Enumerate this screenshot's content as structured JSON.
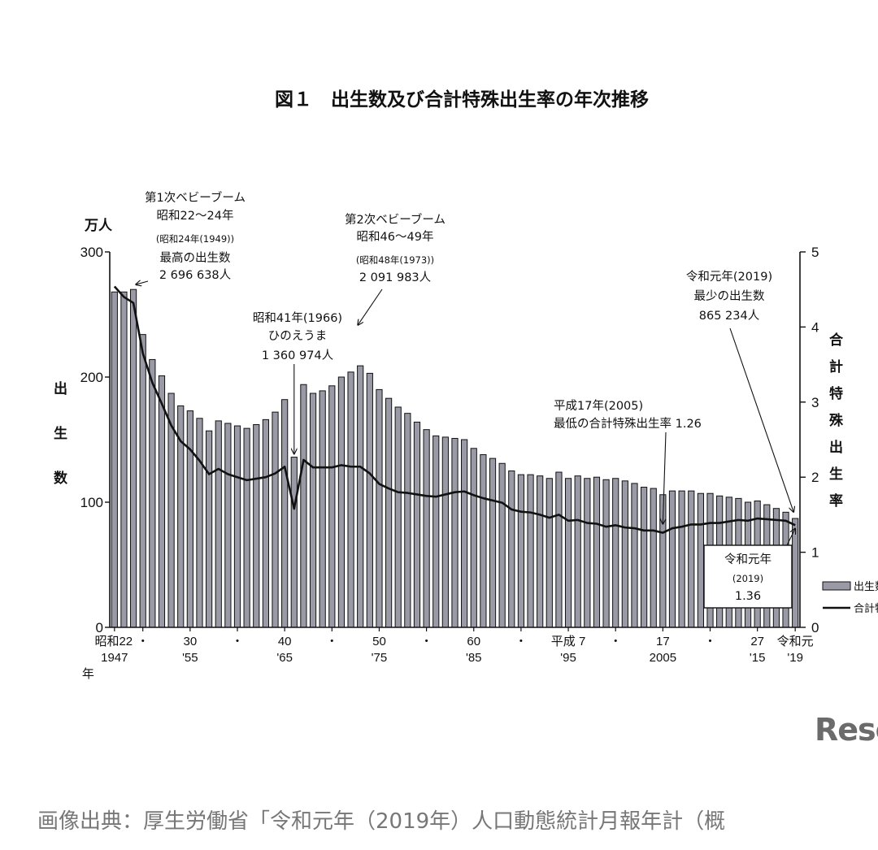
{
  "chart_data": {
    "type": "bar",
    "title": "図１　出生数及び合計特殊出生率の年次推移",
    "ylabel_left_unit": "万人",
    "ylabel_left": [
      "出",
      "生",
      "数"
    ],
    "ylabel_right": [
      "合",
      "計",
      "特",
      "殊",
      "出",
      "生",
      "率"
    ],
    "ylim_left": [
      0,
      300
    ],
    "ylim_right": [
      0,
      5
    ],
    "yticks_left": [
      "0",
      "100",
      "200",
      "300"
    ],
    "yticks_right": [
      "0",
      "1",
      "2",
      "3",
      "4",
      "5"
    ],
    "xtick_labels": [
      {
        "year": 1947,
        "top": "昭和22",
        "bottom": "1947",
        "extra": "年"
      },
      {
        "year": 1950,
        "top": "・",
        "bottom": ""
      },
      {
        "year": 1955,
        "top": "30",
        "bottom": "'55"
      },
      {
        "year": 1960,
        "top": "・",
        "bottom": ""
      },
      {
        "year": 1965,
        "top": "40",
        "bottom": "'65"
      },
      {
        "year": 1970,
        "top": "・",
        "bottom": ""
      },
      {
        "year": 1975,
        "top": "50",
        "bottom": "'75"
      },
      {
        "year": 1980,
        "top": "・",
        "bottom": ""
      },
      {
        "year": 1985,
        "top": "60",
        "bottom": "'85"
      },
      {
        "year": 1990,
        "top": "・",
        "bottom": ""
      },
      {
        "year": 1995,
        "top": "平成 7",
        "bottom": "'95"
      },
      {
        "year": 2000,
        "top": "・",
        "bottom": ""
      },
      {
        "year": 2005,
        "top": "17",
        "bottom": "2005"
      },
      {
        "year": 2010,
        "top": "・",
        "bottom": ""
      },
      {
        "year": 2015,
        "top": "27",
        "bottom": "'15"
      },
      {
        "year": 2019,
        "top": "令和元",
        "bottom": "'19"
      }
    ],
    "x": [
      1947,
      1948,
      1949,
      1950,
      1951,
      1952,
      1953,
      1954,
      1955,
      1956,
      1957,
      1958,
      1959,
      1960,
      1961,
      1962,
      1963,
      1964,
      1965,
      1966,
      1967,
      1968,
      1969,
      1970,
      1971,
      1972,
      1973,
      1974,
      1975,
      1976,
      1977,
      1978,
      1979,
      1980,
      1981,
      1982,
      1983,
      1984,
      1985,
      1986,
      1987,
      1988,
      1989,
      1990,
      1991,
      1992,
      1993,
      1994,
      1995,
      1996,
      1997,
      1998,
      1999,
      2000,
      2001,
      2002,
      2003,
      2004,
      2005,
      2006,
      2007,
      2008,
      2009,
      2010,
      2011,
      2012,
      2013,
      2014,
      2015,
      2016,
      2017,
      2018,
      2019
    ],
    "series": [
      {
        "name": "出生数",
        "axis": "left",
        "values": [
          268,
          268,
          270,
          234,
          214,
          201,
          187,
          177,
          173,
          167,
          157,
          165,
          163,
          161,
          159,
          162,
          166,
          172,
          182,
          136,
          194,
          187,
          189,
          193,
          200,
          204,
          209,
          203,
          190,
          183,
          176,
          171,
          164,
          158,
          153,
          152,
          151,
          150,
          143,
          138,
          135,
          131,
          125,
          122,
          122,
          121,
          119,
          124,
          119,
          121,
          119,
          120,
          118,
          119,
          117,
          115,
          112,
          111,
          106,
          109,
          109,
          109,
          107,
          107,
          105,
          104,
          103,
          100,
          101,
          98,
          95,
          92,
          87
        ]
      },
      {
        "name": "合計特殊出生率",
        "axis": "right",
        "values": [
          4.54,
          4.4,
          4.32,
          3.65,
          3.26,
          2.98,
          2.69,
          2.48,
          2.37,
          2.22,
          2.04,
          2.11,
          2.04,
          2.0,
          1.96,
          1.98,
          2.0,
          2.05,
          2.14,
          1.58,
          2.23,
          2.13,
          2.13,
          2.13,
          2.16,
          2.14,
          2.14,
          2.05,
          1.91,
          1.85,
          1.8,
          1.79,
          1.77,
          1.75,
          1.74,
          1.77,
          1.8,
          1.81,
          1.76,
          1.72,
          1.69,
          1.66,
          1.57,
          1.54,
          1.53,
          1.5,
          1.46,
          1.5,
          1.42,
          1.43,
          1.39,
          1.38,
          1.34,
          1.36,
          1.33,
          1.32,
          1.29,
          1.29,
          1.26,
          1.32,
          1.34,
          1.37,
          1.37,
          1.39,
          1.39,
          1.41,
          1.43,
          1.42,
          1.45,
          1.44,
          1.43,
          1.42,
          1.36
        ]
      }
    ],
    "annotations": {
      "boom1": [
        "第1次ベビーブーム",
        "昭和22〜24年",
        "(昭和24年(1949))",
        "最高の出生数",
        "2 696 638人"
      ],
      "boom2": [
        "第2次ベビーブーム",
        "昭和46〜49年",
        "(昭和48年(1973))",
        "2 091 983人"
      ],
      "hinoeuma": [
        "昭和41年(1966)",
        "ひのえうま",
        "1 360 974人"
      ],
      "low_tfr": [
        "平成17年(2005)",
        "最低の合計特殊出生率  1.26"
      ],
      "min_births": [
        "令和元年(2019)",
        "最少の出生数",
        "865 234人"
      ],
      "box_2019": [
        "令和元年",
        "(2019)",
        "1.36"
      ]
    },
    "legend": {
      "position": "right",
      "items": [
        "出生数",
        "合計特殊出生率"
      ]
    }
  },
  "page": {
    "watermark": "Rese",
    "footer": "画像出典：厚生労働省「令和元年（2019年）人口動態統計月報年計（概"
  }
}
